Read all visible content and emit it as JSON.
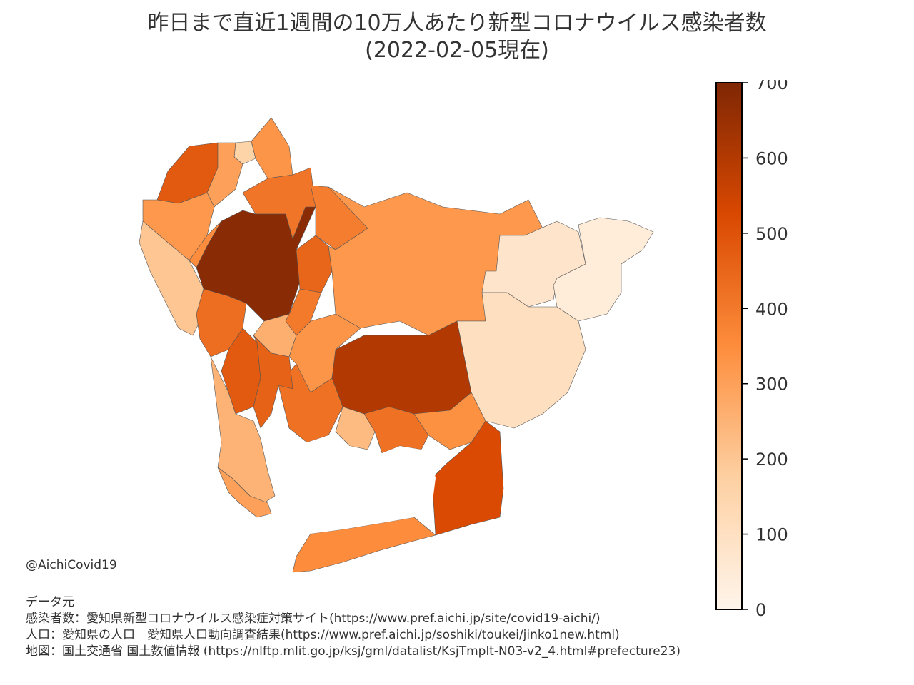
{
  "title": {
    "line1": "昨日まで直近1週間の10万人あたり新型コロナウイルス感染者数",
    "line2": "(2022-02-05現在)"
  },
  "colorbar": {
    "ticks": [
      "700",
      "600",
      "500",
      "400",
      "300",
      "200",
      "100",
      "0"
    ],
    "min": 0,
    "max": 700,
    "colormap": [
      "#fff5eb",
      "#fdd0a2",
      "#fd8d3c",
      "#d94801",
      "#7f2704"
    ]
  },
  "handle": "@AichiCovid19",
  "credits": {
    "heading": "データ元",
    "line1": "感染者数：愛知県新型コロナウイルス感染症対策サイト(https://www.pref.aichi.jp/site/covid19-aichi/)",
    "line2": "人口：愛知県の人口　愛知県人口動向調査結果(https://www.pref.aichi.jp/soshiki/toukei/jinko1new.html)",
    "line3": "地図：国土交通省 国土数値情報 (https://nlftp.mlit.go.jp/ksj/gml/datalist/KsjTmplt-N03-v2_4.html#prefecture23)"
  },
  "regions": [
    {
      "id": "nagoya",
      "value": 680
    },
    {
      "id": "northwest",
      "value": 480
    },
    {
      "id": "north-small",
      "value": 160
    },
    {
      "id": "north-tip",
      "value": 330
    },
    {
      "id": "west-coast",
      "value": 200
    },
    {
      "id": "west",
      "value": 320
    },
    {
      "id": "northeast",
      "value": 390
    },
    {
      "id": "east-central",
      "value": 320
    },
    {
      "id": "far-east-north",
      "value": 80
    },
    {
      "id": "far-east",
      "value": 40
    },
    {
      "id": "mikawa-upper",
      "value": 100
    },
    {
      "id": "toyota-south",
      "value": 330
    },
    {
      "id": "okazaki",
      "value": 600
    },
    {
      "id": "nishio",
      "value": 420
    },
    {
      "id": "toyohashi",
      "value": 520
    },
    {
      "id": "atsumi",
      "value": 350
    },
    {
      "id": "chita-north",
      "value": 430
    },
    {
      "id": "chita-central",
      "value": 480
    },
    {
      "id": "chita-east",
      "value": 460
    },
    {
      "id": "chita-south",
      "value": 250
    },
    {
      "id": "chita-tip",
      "value": 300
    },
    {
      "id": "anjo",
      "value": 420
    },
    {
      "id": "hekinan",
      "value": 230
    },
    {
      "id": "kariya",
      "value": 260
    },
    {
      "id": "east-nagoya",
      "value": 450
    },
    {
      "id": "toyoake",
      "value": 400
    },
    {
      "id": "gamagori",
      "value": 340
    },
    {
      "id": "ichinomiya",
      "value": 350
    },
    {
      "id": "inuyama",
      "value": 300
    },
    {
      "id": "seto",
      "value": 410
    }
  ]
}
